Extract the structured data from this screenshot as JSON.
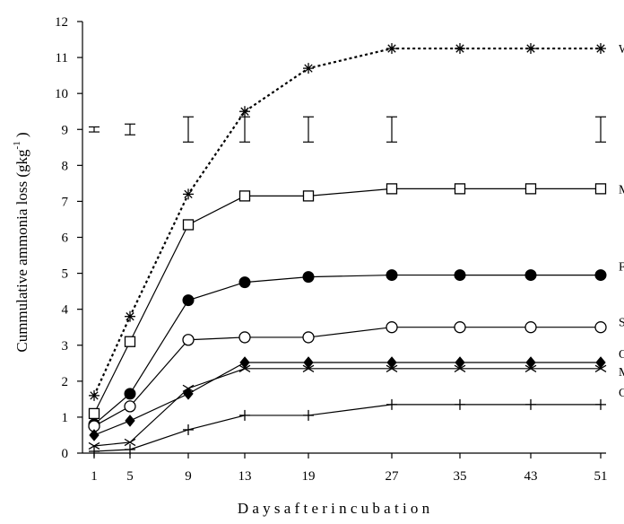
{
  "chart_data": {
    "type": "line",
    "title": "",
    "xlabel": "D a y s  a f t e r  i n c u b a t i o n",
    "ylabel": "Cummulative ammonia loss (gkg",
    "ylabel_exponent": "-1",
    "ylabel_close": " )",
    "categories": [
      "1",
      "5",
      "9",
      "13",
      "19",
      "27",
      "35",
      "43",
      "51"
    ],
    "ylim": [
      0,
      12
    ],
    "yticks": [
      "0",
      "1",
      "2",
      "3",
      "4",
      "5",
      "6",
      "7",
      "8",
      "9",
      "10",
      "11",
      "12"
    ],
    "grid": false,
    "legend": "labels at right end of each series",
    "series": [
      {
        "name": "W A",
        "marker": "asterisk",
        "line": "dotted",
        "values": [
          1.6,
          3.8,
          7.2,
          9.5,
          10.7,
          11.25,
          11.25,
          11.25,
          11.25
        ]
      },
      {
        "name": "M A",
        "marker": "open-square",
        "line": "solid",
        "values": [
          1.1,
          3.1,
          6.35,
          7.15,
          7.15,
          7.35,
          7.35,
          7.35,
          7.35
        ]
      },
      {
        "name": "F M",
        "marker": "filled-circle",
        "line": "solid",
        "values": [
          0.8,
          1.65,
          4.25,
          4.75,
          4.9,
          4.95,
          4.95,
          4.95,
          4.95
        ]
      },
      {
        "name": "SD",
        "marker": "open-circle",
        "line": "solid",
        "values": [
          0.75,
          1.3,
          3.15,
          3.22,
          3.22,
          3.5,
          3.5,
          3.5,
          3.5
        ]
      },
      {
        "name": "O P",
        "marker": "filled-diamond",
        "line": "solid",
        "values": [
          0.5,
          0.9,
          1.65,
          2.52,
          2.52,
          2.52,
          2.52,
          2.52,
          2.52
        ]
      },
      {
        "name": "M S",
        "marker": "x",
        "line": "solid",
        "values": [
          0.2,
          0.3,
          1.8,
          2.35,
          2.35,
          2.35,
          2.35,
          2.35,
          2.35
        ]
      },
      {
        "name": "C P",
        "marker": "plus",
        "line": "solid",
        "values": [
          0.05,
          0.1,
          0.65,
          1.05,
          1.05,
          1.35,
          1.35,
          1.35,
          1.35
        ]
      }
    ],
    "error_bars": [
      {
        "x": "1",
        "low": 8.93,
        "high": 9.07
      },
      {
        "x": "5",
        "low": 8.85,
        "high": 9.15
      },
      {
        "x": "9",
        "low": 8.65,
        "high": 9.35
      },
      {
        "x": "13",
        "low": 8.65,
        "high": 9.35
      },
      {
        "x": "19",
        "low": 8.65,
        "high": 9.35
      },
      {
        "x": "27",
        "low": 8.65,
        "high": 9.35
      },
      {
        "x": "51",
        "low": 8.65,
        "high": 9.35
      }
    ]
  }
}
